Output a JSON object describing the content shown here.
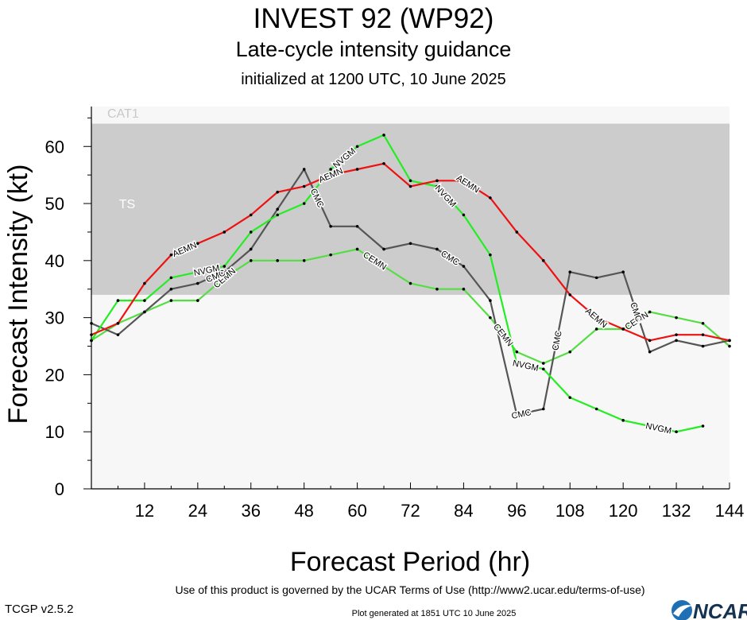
{
  "header": {
    "title": "INVEST 92 (WP92)",
    "subtitle": "Late-cycle intensity guidance",
    "init": "initialized at 1200 UTC, 10 June 2025"
  },
  "footer": {
    "terms": "Use of this product is governed by the UCAR Terms of Use (http://www2.ucar.edu/terms-of-use)",
    "generated": "Plot generated at 1851 UTC   10 June 2025",
    "version": "TCGP v2.5.2",
    "logo": "NCAR"
  },
  "chart_data": {
    "type": "line",
    "xlabel": "Forecast Period (hr)",
    "ylabel": "Forecast Intensity (kt)",
    "xlim": [
      0,
      144
    ],
    "ylim": [
      0,
      67
    ],
    "xticks": [
      12,
      24,
      36,
      48,
      60,
      72,
      84,
      96,
      108,
      120,
      132,
      144
    ],
    "yticks": [
      0,
      10,
      20,
      30,
      40,
      50,
      60
    ],
    "bands": [
      {
        "label": "TS",
        "from": 34,
        "to": 64,
        "color": "#cccccc"
      },
      {
        "label": "CAT1",
        "from": 64,
        "to": 67,
        "color": "#f7f7f7"
      }
    ],
    "series": [
      {
        "name": "AEMN",
        "color": "#ee1111",
        "x": [
          0,
          6,
          12,
          18,
          24,
          30,
          36,
          42,
          48,
          54,
          60,
          66,
          72,
          78,
          84,
          90,
          96,
          102,
          108,
          114,
          120,
          126,
          132,
          138,
          144
        ],
        "y": [
          27,
          29,
          36,
          41,
          43,
          45,
          48,
          52,
          53,
          55,
          56,
          57,
          53,
          54,
          54,
          51,
          45,
          40,
          34,
          30,
          28,
          26,
          27,
          27,
          26
        ],
        "labels_at": [
          21,
          54,
          85,
          114
        ]
      },
      {
        "name": "NVGM",
        "color": "#22ee22",
        "x": [
          0,
          6,
          12,
          18,
          24,
          30,
          36,
          42,
          48,
          54,
          60,
          66,
          72,
          78,
          84,
          90,
          96,
          102,
          108,
          114,
          120,
          126,
          132,
          138
        ],
        "y": [
          26,
          33,
          33,
          37,
          38,
          39,
          45,
          48,
          50,
          56,
          60,
          62,
          54,
          53,
          48,
          41,
          22,
          21,
          16,
          14,
          12,
          11,
          10,
          11
        ],
        "labels_at": [
          26,
          57,
          80,
          98,
          128
        ]
      },
      {
        "name": "CMC",
        "color": "#555555",
        "x": [
          0,
          6,
          12,
          18,
          24,
          30,
          36,
          42,
          48,
          54,
          60,
          66,
          72,
          78,
          84,
          90,
          96,
          102,
          108,
          114,
          120,
          126,
          132,
          138,
          144
        ],
        "y": [
          29,
          27,
          31,
          35,
          36,
          38,
          42,
          49,
          56,
          46,
          46,
          42,
          43,
          42,
          39,
          33,
          13,
          14,
          38,
          37,
          38,
          24,
          26,
          25,
          26
        ],
        "labels_at": [
          28,
          51,
          81,
          97,
          105,
          123
        ]
      },
      {
        "name": "CEMN",
        "color": "#55dd44",
        "x": [
          0,
          6,
          12,
          18,
          24,
          30,
          36,
          42,
          48,
          54,
          60,
          66,
          72,
          78,
          84,
          90,
          96,
          102,
          108,
          114,
          120,
          126,
          132,
          138,
          144
        ],
        "y": [
          26,
          29,
          31,
          33,
          33,
          37,
          40,
          40,
          40,
          41,
          42,
          39,
          36,
          35,
          35,
          30,
          24,
          22,
          24,
          28,
          28,
          31,
          30,
          29,
          25
        ],
        "labels_at": [
          30,
          64,
          93,
          123
        ]
      }
    ]
  }
}
